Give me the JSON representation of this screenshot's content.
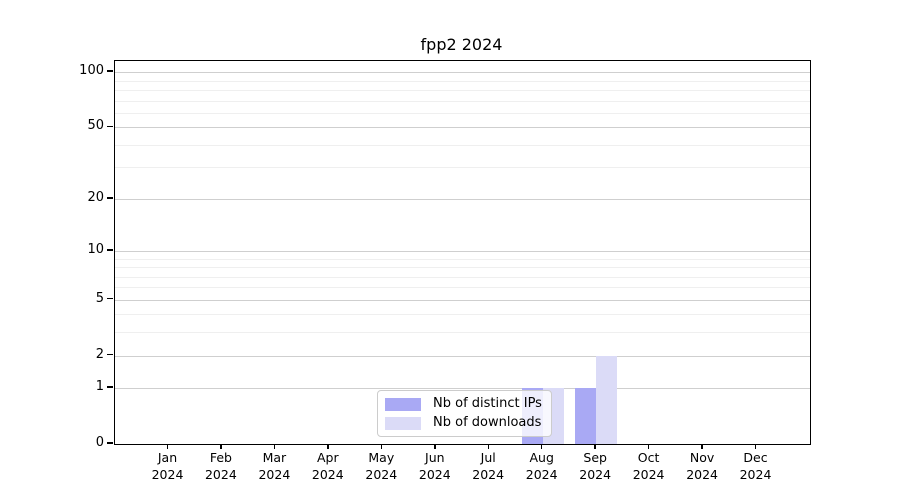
{
  "title": "fpp2 2024",
  "chart_data": {
    "type": "bar",
    "title": "fpp2 2024",
    "categories": [
      "Jan",
      "Feb",
      "Mar",
      "Apr",
      "May",
      "Jun",
      "Jul",
      "Aug",
      "Sep",
      "Oct",
      "Nov",
      "Dec"
    ],
    "category_year": "2024",
    "series": [
      {
        "name": "Nb of distinct IPs",
        "color": "#a9a9f4",
        "values": [
          0,
          0,
          0,
          0,
          0,
          0,
          0,
          1,
          1,
          0,
          0,
          0
        ]
      },
      {
        "name": "Nb of downloads",
        "color": "#dbdbf7",
        "values": [
          0,
          0,
          0,
          0,
          0,
          0,
          0,
          1,
          2,
          0,
          0,
          0
        ]
      }
    ],
    "xlabel": "",
    "ylabel": "",
    "yscale": "log1p",
    "ylim": [
      0,
      115
    ],
    "y_major_ticks": [
      0,
      1,
      2,
      5,
      10,
      20,
      50,
      100
    ],
    "y_minor_ticks": [
      3,
      4,
      6,
      7,
      8,
      9,
      30,
      40,
      60,
      70,
      80,
      90
    ],
    "grid": true,
    "legend_position": "lower-center"
  },
  "colors": {
    "bar_distinct_ips": "#a9a9f4",
    "bar_downloads": "#dbdbf7",
    "major_gridline": "#cfcfcf",
    "minor_gridline": "#efefef",
    "spine": "#000000",
    "legend_border": "#cccccc",
    "background": "#ffffff"
  }
}
